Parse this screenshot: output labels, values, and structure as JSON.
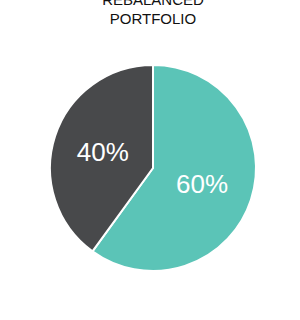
{
  "chart_data": {
    "type": "pie",
    "title": "REBALANCED PORTFOLIO",
    "values": [
      60,
      40
    ],
    "value_labels": [
      "60%",
      "40%"
    ],
    "colors": [
      "#5bc4b7",
      "#48494b"
    ],
    "data_labels": true
  }
}
